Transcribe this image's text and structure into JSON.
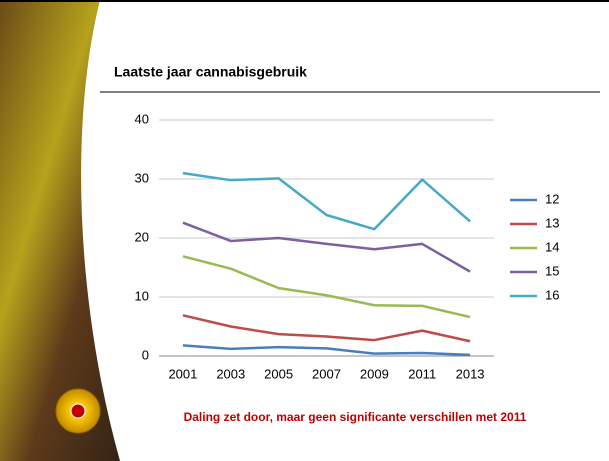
{
  "chart_data": {
    "type": "line",
    "title": "Laatste jaar cannabisgebruik",
    "annotation": "Daling zet door, maar geen significante verschillen met 2011",
    "categories": [
      "2001",
      "2003",
      "2005",
      "2007",
      "2009",
      "2011",
      "2013"
    ],
    "series": [
      {
        "name": "12",
        "color": "#4a7ebb",
        "values": [
          1.8,
          1.2,
          1.5,
          1.3,
          0.4,
          0.5,
          0.2
        ]
      },
      {
        "name": "13",
        "color": "#be4b48",
        "values": [
          6.9,
          5.0,
          3.7,
          3.3,
          2.7,
          4.3,
          2.5
        ]
      },
      {
        "name": "14",
        "color": "#98b954",
        "values": [
          16.9,
          14.8,
          11.5,
          10.3,
          8.6,
          8.5,
          6.6
        ]
      },
      {
        "name": "15",
        "color": "#7d60a0",
        "values": [
          22.6,
          19.5,
          20.0,
          19.0,
          18.1,
          19.0,
          14.3
        ]
      },
      {
        "name": "16",
        "color": "#46aac5",
        "values": [
          31.0,
          29.8,
          30.1,
          23.9,
          21.5,
          29.9,
          22.8
        ]
      }
    ],
    "ylim": [
      0,
      40
    ],
    "yticks": [
      0,
      10,
      20,
      30,
      40
    ],
    "grid": true,
    "legend": "right"
  }
}
